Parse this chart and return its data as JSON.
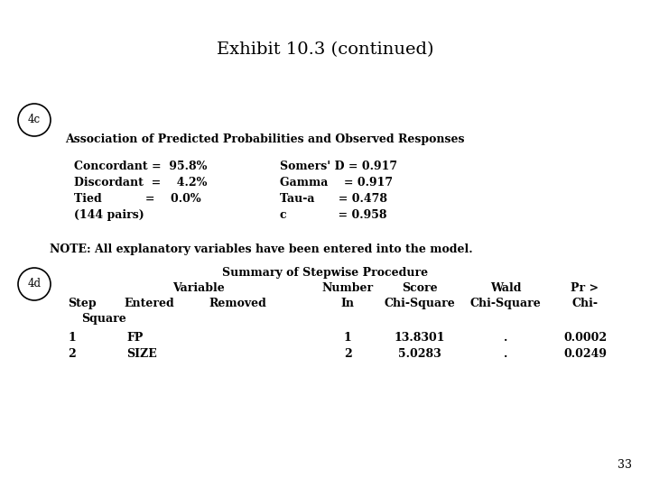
{
  "title": "Exhibit 10.3 (continued)",
  "title_fontsize": 14,
  "background_color": "#ffffff",
  "label_4c": "4c",
  "label_4d": "4d",
  "section_4c_heading": "Association of Predicted Probabilities and Observed Responses",
  "concordant_line": "Concordant =  95.8%",
  "discordant_line": "Discordant  =    4.2%",
  "tied_line": "Tied           =    0.0%",
  "pairs_line": "(144 pairs)",
  "somers_line": "Somers' D = 0.917",
  "gamma_line": "Gamma    = 0.917",
  "taua_line": "Tau-a      = 0.478",
  "c_line": "c             = 0.958",
  "note_line": "NOTE: All explanatory variables have been entered into the model.",
  "summary_title": "Summary of Stepwise Procedure",
  "page_num": "33",
  "body_fontsize": 9,
  "heading_fontsize": 9,
  "note_fontsize": 9,
  "table_fontsize": 9
}
